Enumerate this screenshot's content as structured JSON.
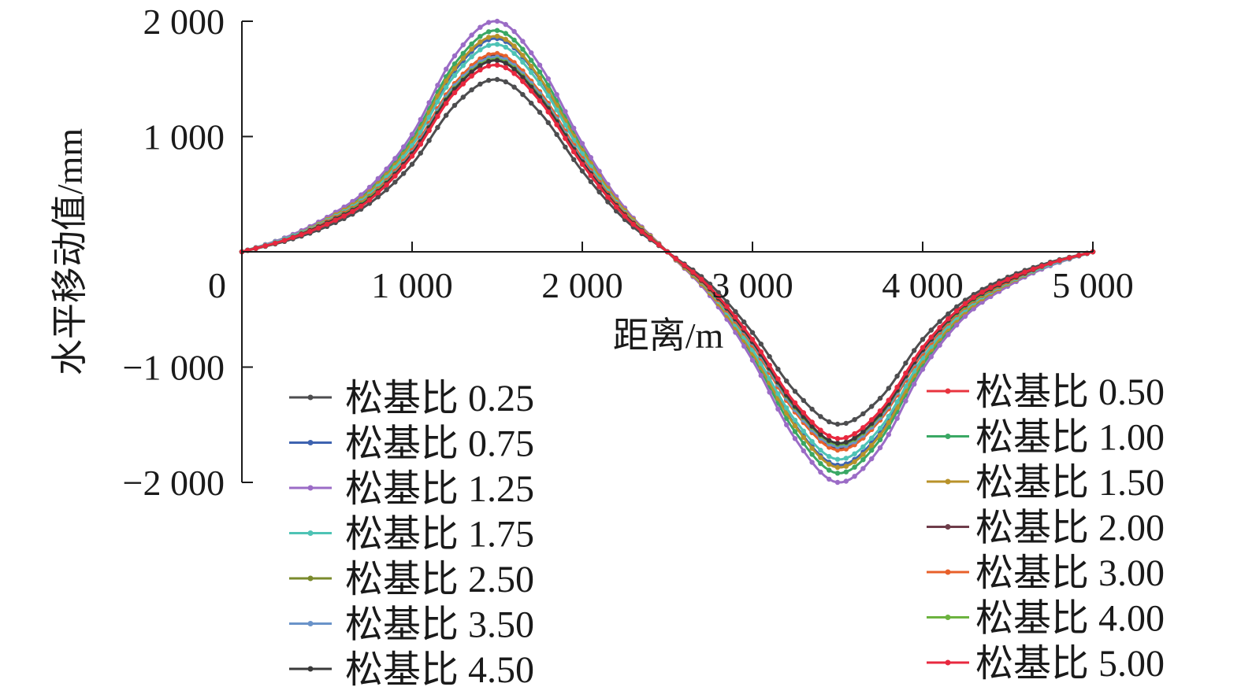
{
  "chart_data": {
    "type": "line",
    "title": "",
    "xlabel": "距离/m",
    "ylabel": "水平移动值/mm",
    "xlim": [
      0,
      5000
    ],
    "ylim": [
      -2000,
      2000
    ],
    "x_ticks": [
      1000,
      2000,
      3000,
      4000,
      5000
    ],
    "x_tick_labels": [
      "1 000",
      "2 000",
      "3 000",
      "4 000",
      "5 000"
    ],
    "y_ticks": [
      2000,
      1000,
      0,
      -1000,
      -2000
    ],
    "y_tick_labels": [
      "2 000",
      "1 000",
      "0",
      "−1 000",
      "−2 000"
    ],
    "grid": false,
    "legend_placement": "bottom, two columns",
    "x": [
      0,
      250,
      500,
      750,
      1000,
      1250,
      1500,
      1750,
      2000,
      2250,
      2500,
      2750,
      3000,
      3250,
      3500,
      3750,
      4000,
      4250,
      4500,
      4750,
      5000
    ],
    "series": [
      {
        "name": "松基比 0.25",
        "color": "#4d4d4f",
        "values": [
          0,
          90,
          220,
          420,
          760,
          1270,
          1495,
          1210,
          700,
          280,
          0,
          -280,
          -700,
          -1210,
          -1495,
          -1270,
          -760,
          -420,
          -220,
          -90,
          0
        ]
      },
      {
        "name": "松基比 0.50",
        "color": "#e8343f",
        "values": [
          0,
          100,
          240,
          450,
          830,
          1380,
          1620,
          1310,
          760,
          310,
          0,
          -310,
          -760,
          -1310,
          -1620,
          -1380,
          -830,
          -450,
          -240,
          -100,
          0
        ]
      },
      {
        "name": "松基比 0.75",
        "color": "#3e63b0",
        "values": [
          0,
          110,
          280,
          520,
          940,
          1570,
          1850,
          1500,
          870,
          350,
          0,
          -350,
          -870,
          -1500,
          -1850,
          -1570,
          -940,
          -520,
          -280,
          -110,
          0
        ]
      },
      {
        "name": "松基比 1.00",
        "color": "#3aa864",
        "values": [
          0,
          120,
          290,
          540,
          980,
          1630,
          1920,
          1560,
          900,
          360,
          0,
          -360,
          -900,
          -1560,
          -1920,
          -1630,
          -980,
          -540,
          -290,
          -120,
          0
        ]
      },
      {
        "name": "松基比 1.25",
        "color": "#9b6cc6",
        "values": [
          0,
          120,
          300,
          560,
          1020,
          1700,
          2000,
          1620,
          940,
          380,
          0,
          -380,
          -940,
          -1620,
          -2000,
          -1700,
          -1020,
          -560,
          -300,
          -120,
          0
        ]
      },
      {
        "name": "松基比 1.50",
        "color": "#b8922a",
        "values": [
          0,
          110,
          280,
          520,
          950,
          1590,
          1870,
          1510,
          880,
          360,
          0,
          -360,
          -880,
          -1510,
          -1870,
          -1590,
          -950,
          -520,
          -280,
          -110,
          0
        ]
      },
      {
        "name": "松基比 1.75",
        "color": "#4ec3b5",
        "values": [
          0,
          110,
          270,
          500,
          920,
          1530,
          1800,
          1460,
          850,
          340,
          0,
          -340,
          -850,
          -1460,
          -1800,
          -1530,
          -920,
          -500,
          -270,
          -110,
          0
        ]
      },
      {
        "name": "松基比 2.00",
        "color": "#6e3d4a",
        "values": [
          0,
          100,
          260,
          480,
          870,
          1450,
          1700,
          1380,
          800,
          320,
          0,
          -320,
          -800,
          -1380,
          -1700,
          -1450,
          -870,
          -480,
          -260,
          -100,
          0
        ]
      },
      {
        "name": "松基比 2.50",
        "color": "#7a8a2c",
        "values": [
          0,
          100,
          250,
          470,
          860,
          1430,
          1680,
          1360,
          790,
          320,
          0,
          -320,
          -790,
          -1360,
          -1680,
          -1430,
          -860,
          -470,
          -250,
          -100,
          0
        ]
      },
      {
        "name": "松基比 3.00",
        "color": "#e8602a",
        "values": [
          0,
          100,
          260,
          480,
          880,
          1460,
          1720,
          1390,
          810,
          330,
          0,
          -330,
          -810,
          -1390,
          -1720,
          -1460,
          -880,
          -480,
          -260,
          -100,
          0
        ]
      },
      {
        "name": "松基比 3.50",
        "color": "#6a93c9",
        "values": [
          0,
          100,
          250,
          470,
          860,
          1440,
          1690,
          1370,
          790,
          320,
          0,
          -320,
          -790,
          -1370,
          -1690,
          -1440,
          -860,
          -470,
          -250,
          -100,
          0
        ]
      },
      {
        "name": "松基比 4.00",
        "color": "#6cb33f",
        "values": [
          0,
          100,
          250,
          470,
          850,
          1420,
          1670,
          1350,
          780,
          320,
          0,
          -320,
          -780,
          -1350,
          -1670,
          -1420,
          -850,
          -470,
          -250,
          -100,
          0
        ]
      },
      {
        "name": "松基比 4.50",
        "color": "#3a3a3a",
        "values": [
          0,
          100,
          250,
          460,
          850,
          1410,
          1660,
          1340,
          780,
          320,
          0,
          -320,
          -780,
          -1340,
          -1660,
          -1410,
          -850,
          -460,
          -250,
          -100,
          0
        ]
      },
      {
        "name": "松基比 5.00",
        "color": "#e8283f",
        "values": [
          0,
          100,
          240,
          450,
          830,
          1380,
          1620,
          1310,
          760,
          310,
          0,
          -310,
          -760,
          -1310,
          -1620,
          -1380,
          -830,
          -450,
          -240,
          -100,
          0
        ]
      }
    ]
  }
}
